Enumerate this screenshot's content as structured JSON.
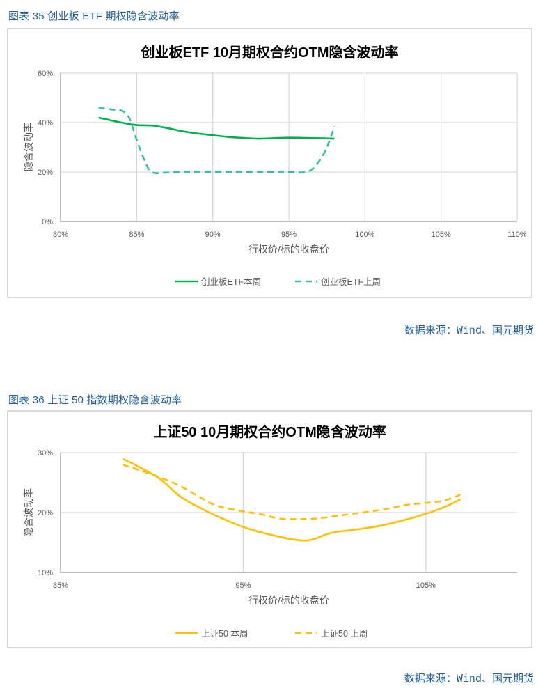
{
  "figures": [
    {
      "caption": "图表 35  创业板 ETF 期权隐含波动率",
      "source": "数据来源：Wind、国元期货"
    },
    {
      "caption": "图表 36  上证 50 指数期权隐含波动率",
      "source": "数据来源：Wind、国元期货"
    }
  ],
  "chart_data": [
    {
      "type": "line",
      "title": "创业板ETF 10月期权合约OTM隐含波动率",
      "xlabel": "行权价/标的收盘价",
      "ylabel": "隐含波动率",
      "xlim": [
        80,
        110
      ],
      "ylim": [
        0,
        60
      ],
      "x_ticks": [
        "80%",
        "85%",
        "90%",
        "95%",
        "100%",
        "105%",
        "110%"
      ],
      "y_ticks": [
        "0%",
        "20%",
        "40%",
        "60%"
      ],
      "grid": true,
      "legend_position": "bottom",
      "series": [
        {
          "name": "创业板ETF本周",
          "style": "solid",
          "color": "#00b050",
          "x": [
            82.5,
            84.0,
            85.0,
            86.0,
            87.0,
            88.0,
            89.0,
            90.0,
            91.0,
            92.0,
            93.0,
            94.0,
            95.0,
            96.0,
            97.0,
            98.0
          ],
          "values": [
            42.0,
            40.0,
            39.0,
            38.8,
            37.8,
            36.5,
            35.6,
            34.9,
            34.2,
            33.8,
            33.5,
            33.7,
            33.9,
            33.8,
            33.7,
            33.5
          ]
        },
        {
          "name": "创业板ETF上周",
          "style": "dashed",
          "color": "#2ec4a0",
          "x": [
            82.5,
            83.5,
            84.0,
            84.5,
            85.0,
            85.5,
            86.0,
            87.0,
            88.0,
            90.0,
            92.0,
            94.0,
            95.0,
            96.0,
            96.5,
            97.0,
            97.5,
            98.0
          ],
          "values": [
            46.0,
            45.2,
            44.8,
            42.0,
            33.0,
            25.0,
            20.0,
            19.8,
            20.1,
            20.1,
            20.1,
            20.1,
            20.1,
            19.9,
            21.0,
            24.5,
            30.0,
            38.5
          ]
        }
      ]
    },
    {
      "type": "line",
      "title": "上证50 10月期权合约OTM隐含波动率",
      "xlabel": "行权价/标的收盘价",
      "ylabel": "隐含波动率",
      "xlim": [
        85,
        110
      ],
      "ylim": [
        10,
        30
      ],
      "x_ticks": [
        "85%",
        "95%",
        "105%"
      ],
      "y_ticks": [
        "10%",
        "20%",
        "30%"
      ],
      "grid": true,
      "legend_position": "bottom",
      "series": [
        {
          "name": "上证50 本周",
          "style": "solid",
          "color": "#ffc000",
          "x": [
            88.4,
            89.5,
            90.5,
            91.5,
            92.5,
            93.5,
            95.0,
            96.5,
            98.0,
            98.8,
            99.8,
            101.0,
            102.5,
            104.0,
            105.0,
            106.0,
            106.9
          ],
          "values": [
            29.0,
            27.3,
            25.5,
            22.8,
            21.0,
            19.5,
            17.6,
            16.3,
            15.4,
            15.5,
            16.6,
            17.1,
            17.8,
            18.9,
            19.8,
            20.9,
            22.2
          ]
        },
        {
          "name": "上证50 上周",
          "style": "dashed",
          "color": "#ffc000",
          "x": [
            88.4,
            89.5,
            90.5,
            91.5,
            92.5,
            93.5,
            95.0,
            96.0,
            97.0,
            98.0,
            99.0,
            100.0,
            101.0,
            102.0,
            103.0,
            104.0,
            105.0,
            106.0,
            106.9
          ],
          "values": [
            28.0,
            26.9,
            25.8,
            24.5,
            22.8,
            21.2,
            20.2,
            19.7,
            19.0,
            18.9,
            19.0,
            19.4,
            19.8,
            20.2,
            20.7,
            21.3,
            21.6,
            22.0,
            23.0
          ]
        }
      ]
    }
  ]
}
